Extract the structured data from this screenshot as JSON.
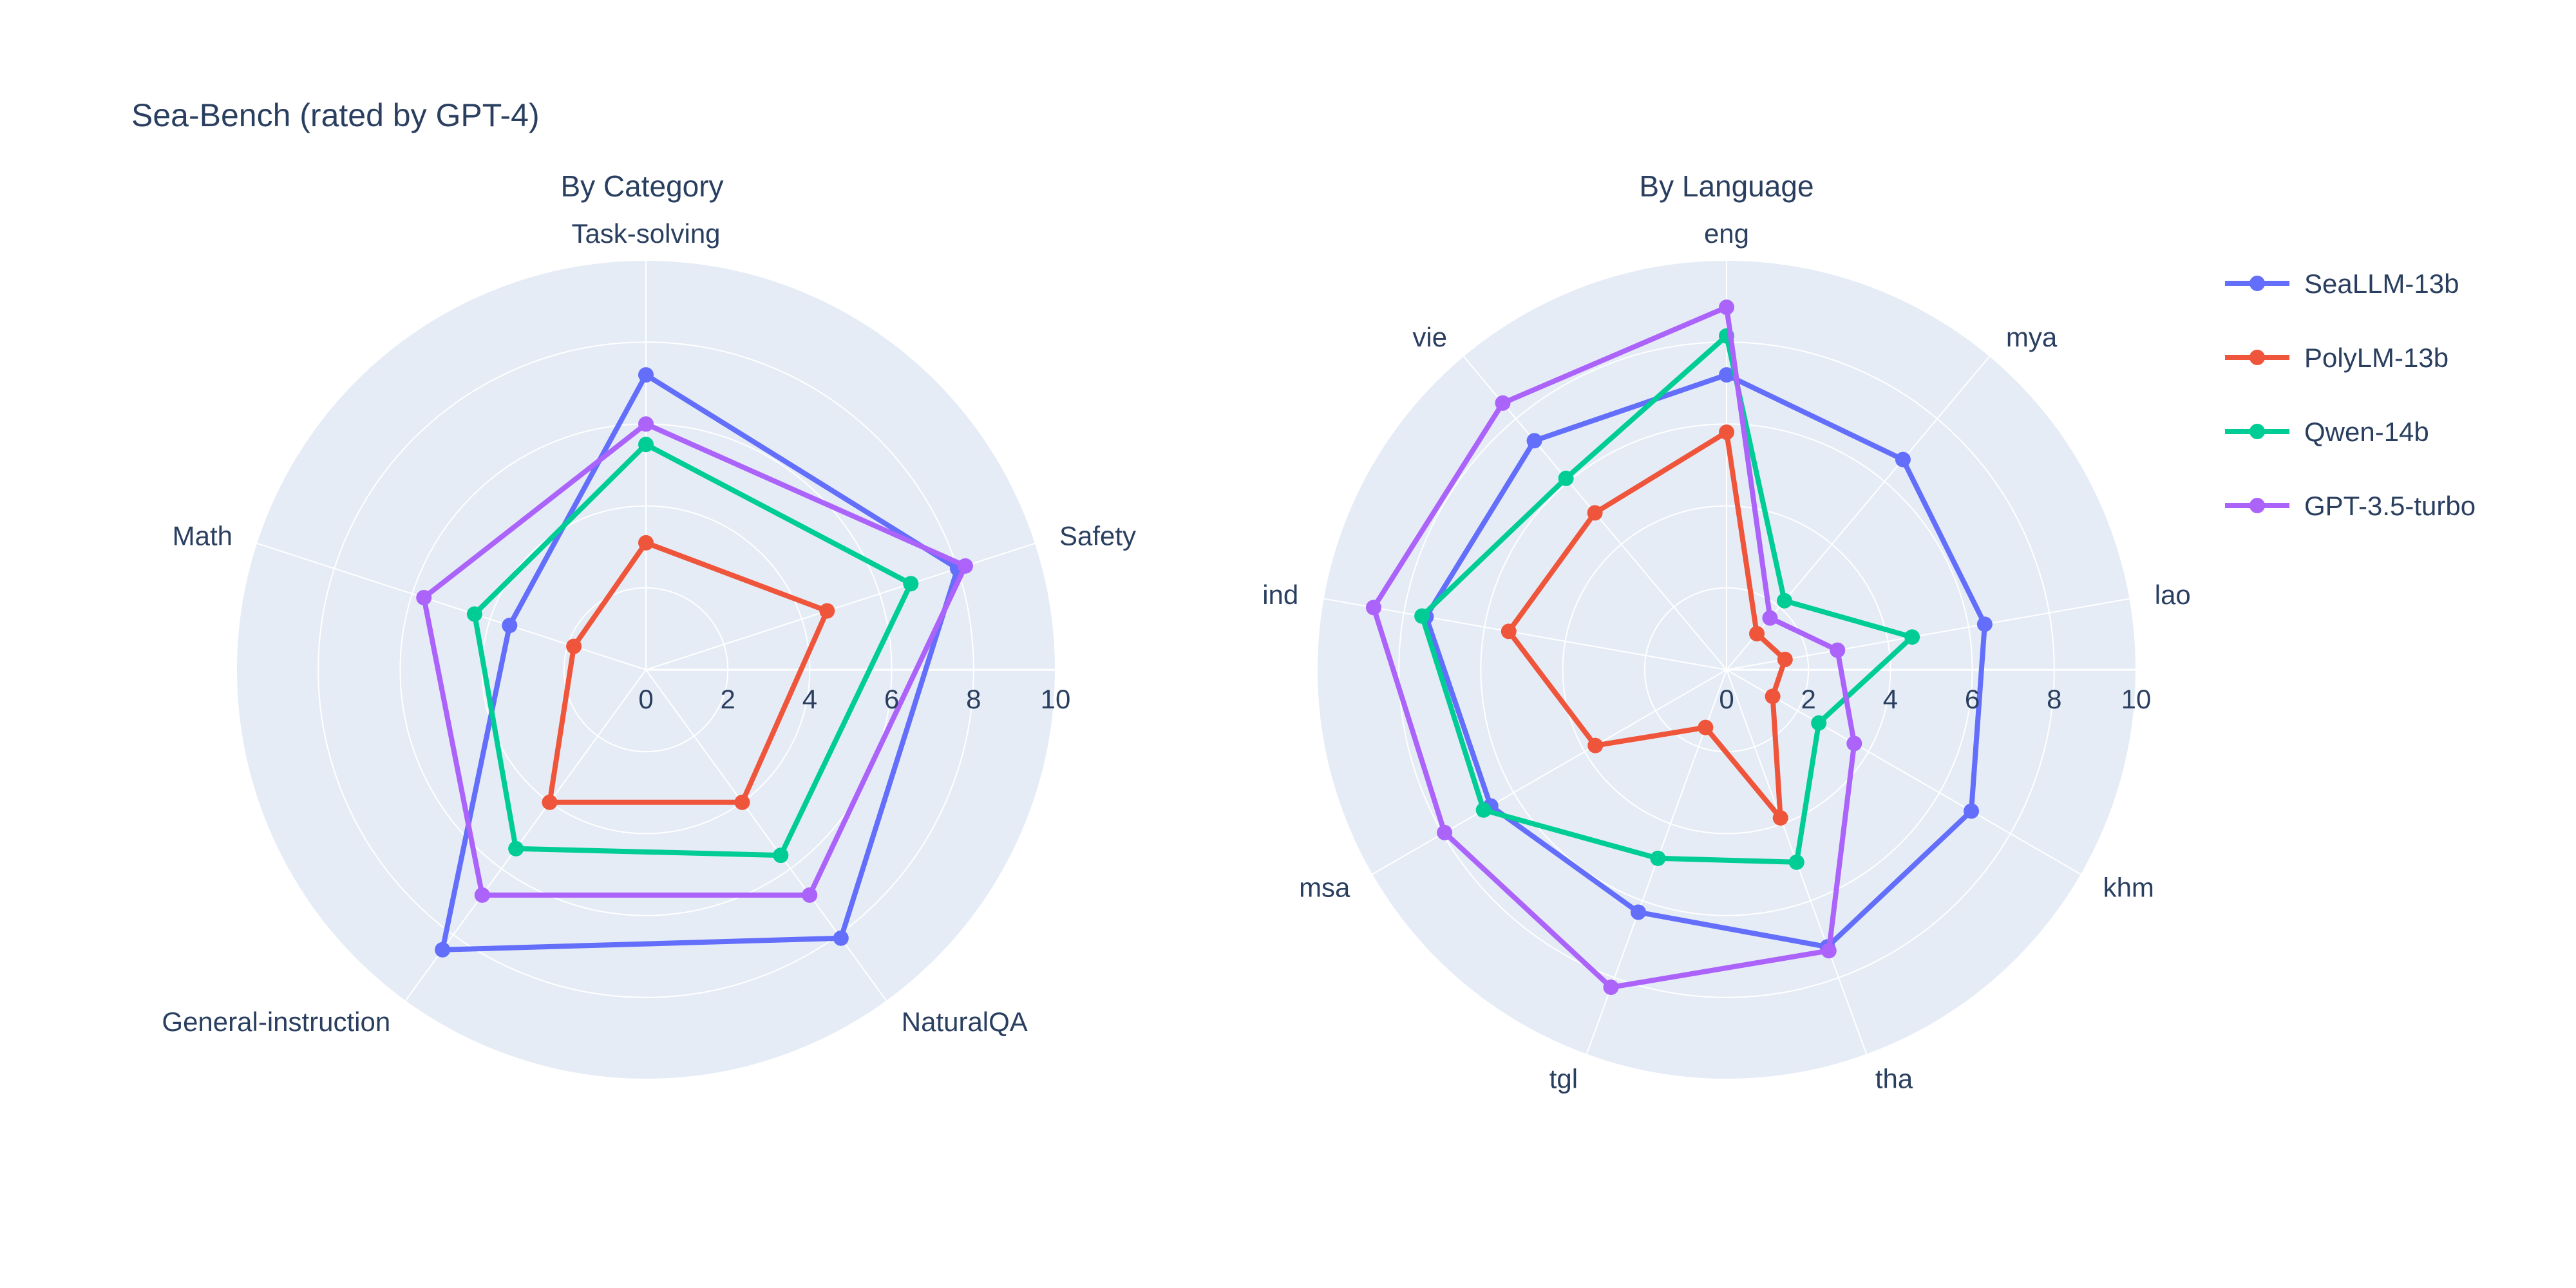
{
  "page": {
    "title": "Sea-Bench (rated by GPT-4)"
  },
  "colors": {
    "background": "#ffffff",
    "polar_background": "#E5ECF6",
    "grid": "#ffffff",
    "text": "#2a3f5f"
  },
  "chart_data": [
    {
      "type": "radar",
      "title": "By Category",
      "categories": [
        "Task-solving",
        "Safety",
        "NaturalQA",
        "General-instruction",
        "Math"
      ],
      "r_ticks": [
        "0",
        "2",
        "4",
        "6",
        "8",
        "10"
      ],
      "r_max": 10,
      "grid": "on",
      "series": [
        {
          "name": "SeaLLM-13b",
          "color": "#636EFA",
          "values": [
            7.2,
            8.0,
            8.1,
            8.45,
            3.5
          ]
        },
        {
          "name": "PolyLM-13b",
          "color": "#EF553B",
          "values": [
            3.1,
            4.65,
            4.0,
            4.0,
            1.85
          ]
        },
        {
          "name": "Qwen-14b",
          "color": "#00CC96",
          "values": [
            5.5,
            6.8,
            5.6,
            5.4,
            4.4
          ]
        },
        {
          "name": "GPT-3.5-turbo",
          "color": "#AB63FA",
          "values": [
            6.0,
            8.2,
            6.8,
            6.8,
            5.7
          ]
        }
      ]
    },
    {
      "type": "radar",
      "title": "By Language",
      "categories": [
        "eng",
        "mya",
        "lao",
        "khm",
        "tha",
        "tgl",
        "msa",
        "ind",
        "vie"
      ],
      "r_ticks": [
        "0",
        "2",
        "4",
        "6",
        "8",
        "10"
      ],
      "r_max": 10,
      "grid": "on",
      "series": [
        {
          "name": "SeaLLM-13b",
          "color": "#636EFA",
          "values": [
            7.2,
            6.7,
            6.4,
            6.9,
            7.2,
            6.3,
            6.65,
            7.45,
            7.3
          ]
        },
        {
          "name": "PolyLM-13b",
          "color": "#EF553B",
          "values": [
            5.8,
            1.15,
            1.45,
            1.3,
            3.85,
            1.5,
            3.7,
            5.4,
            5.0
          ]
        },
        {
          "name": "Qwen-14b",
          "color": "#00CC96",
          "values": [
            8.15,
            2.2,
            4.6,
            2.6,
            5.0,
            4.9,
            6.85,
            7.55,
            6.1
          ]
        },
        {
          "name": "GPT-3.5-turbo",
          "color": "#AB63FA",
          "values": [
            8.85,
            1.65,
            2.75,
            3.6,
            7.3,
            8.25,
            7.95,
            8.75,
            8.5
          ]
        }
      ]
    }
  ],
  "legend": {
    "items": [
      {
        "label": "SeaLLM-13b",
        "color": "#636EFA"
      },
      {
        "label": "PolyLM-13b",
        "color": "#EF553B"
      },
      {
        "label": "Qwen-14b",
        "color": "#00CC96"
      },
      {
        "label": "GPT-3.5-turbo",
        "color": "#AB63FA"
      }
    ]
  }
}
